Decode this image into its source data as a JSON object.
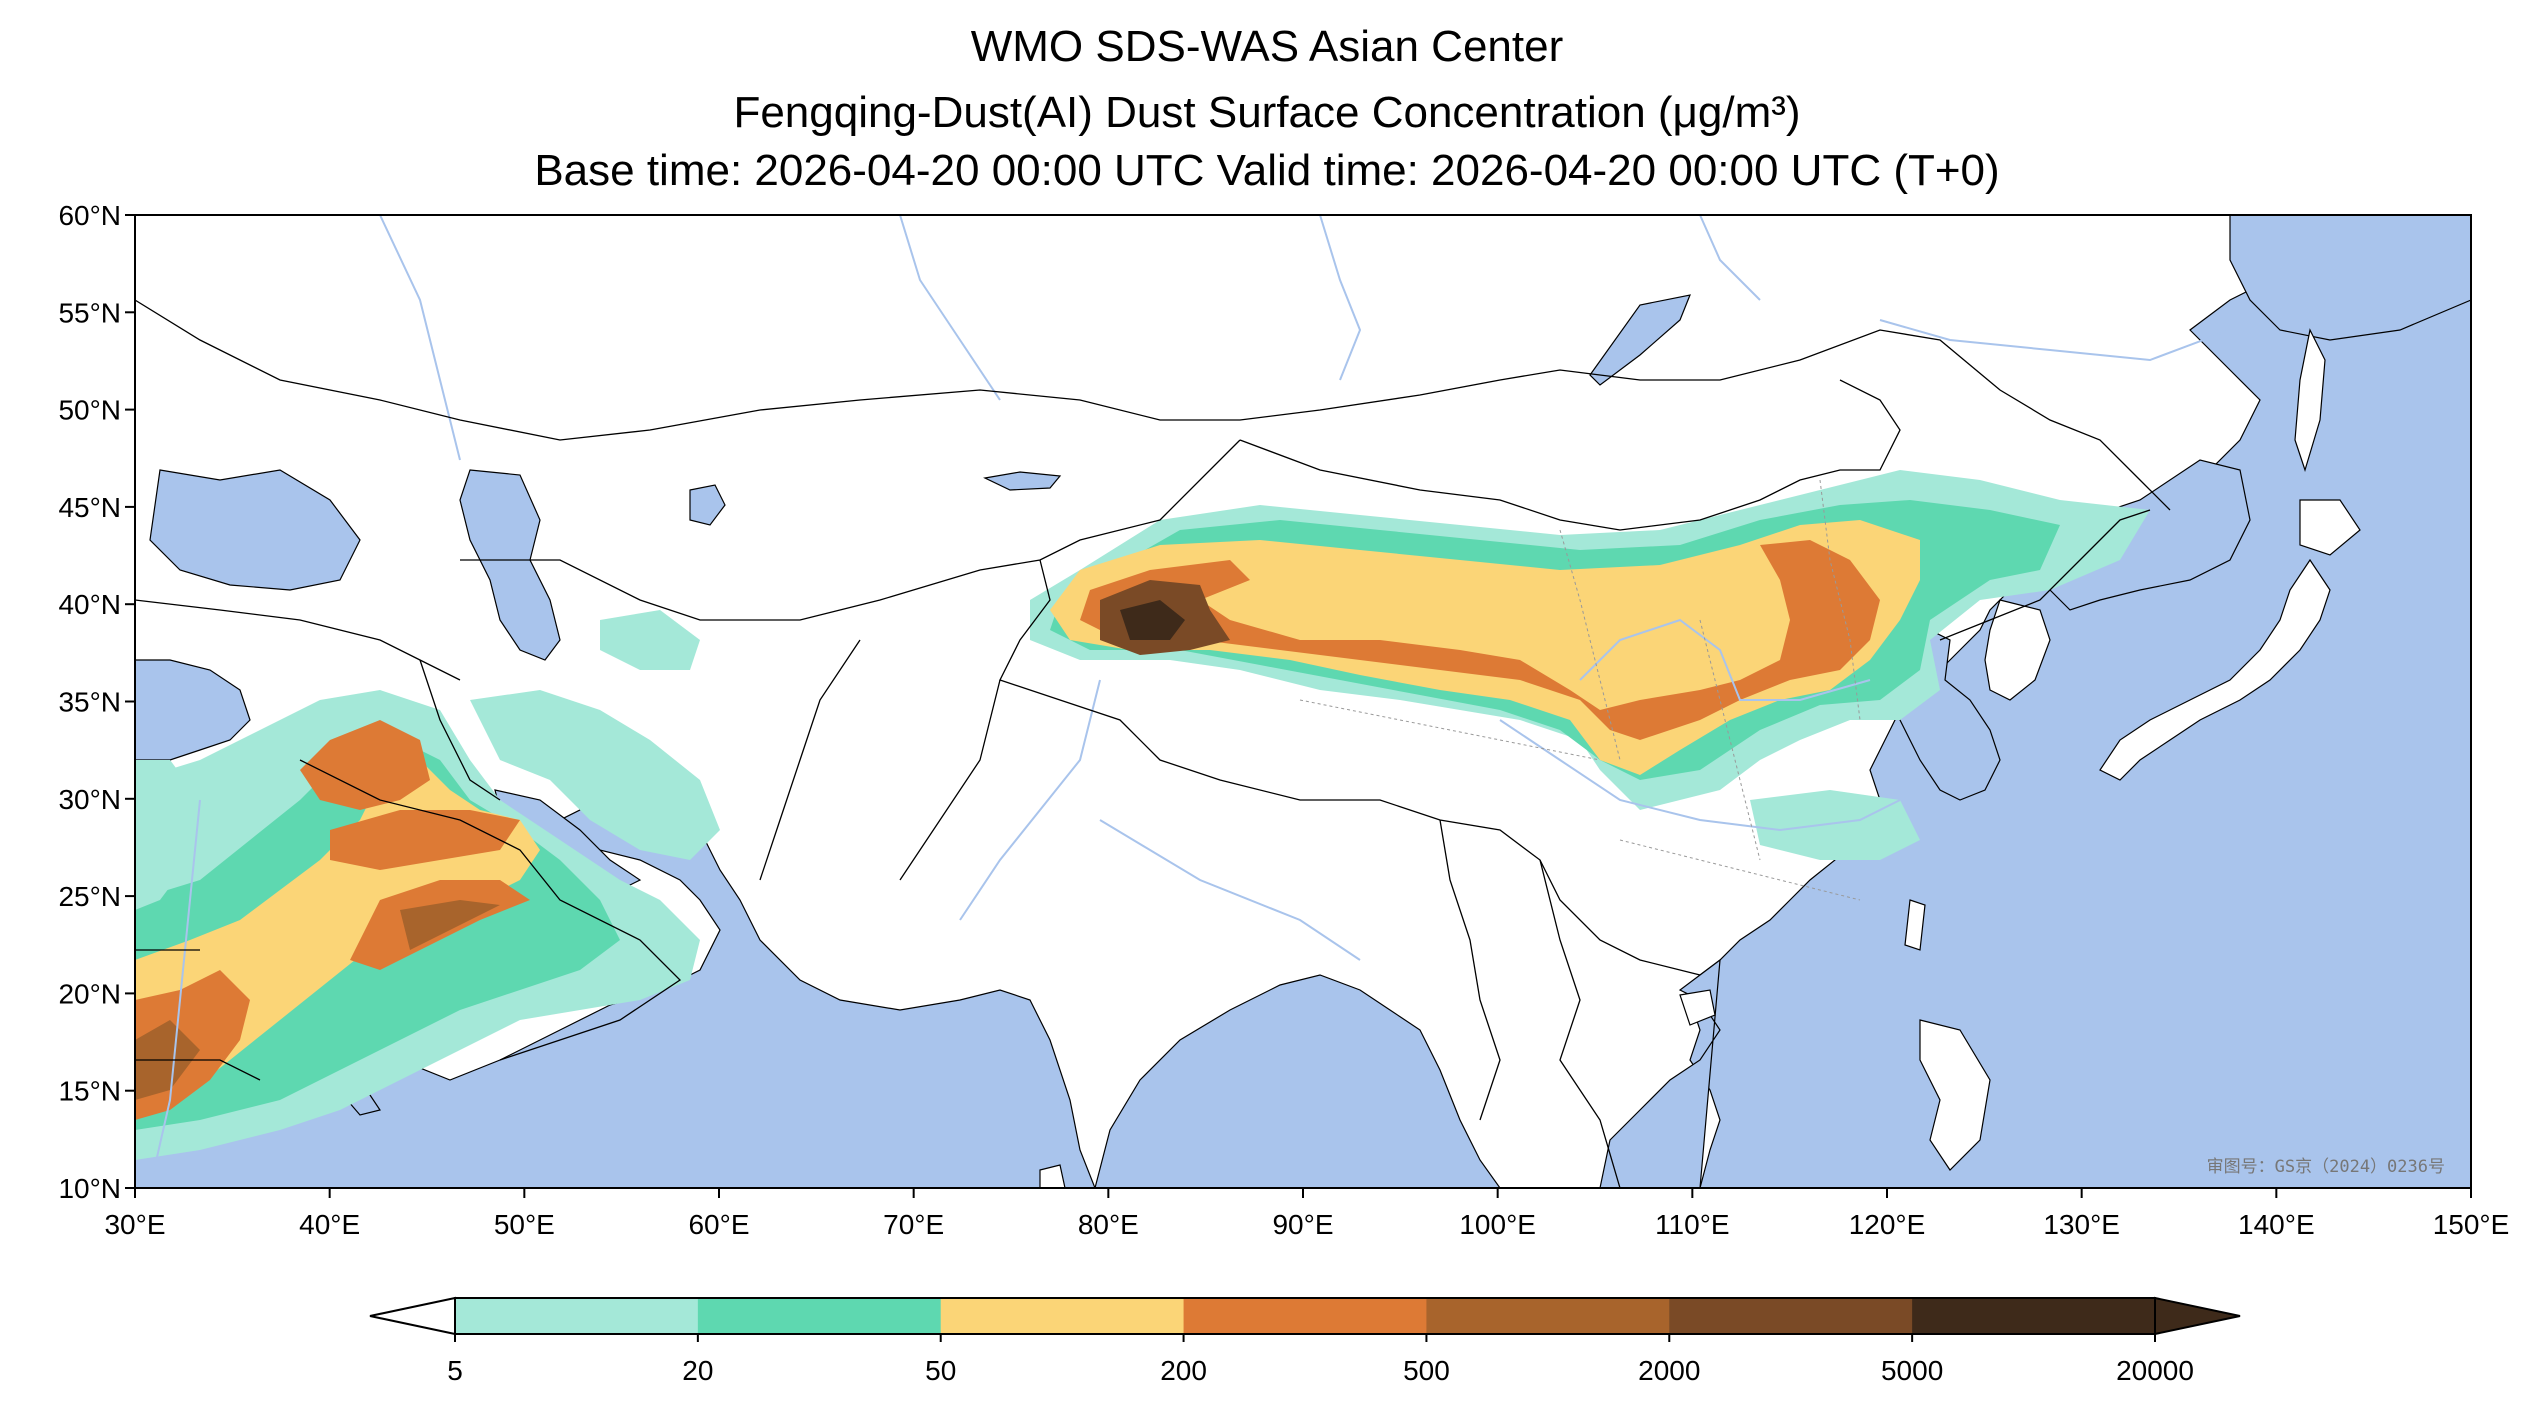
{
  "title": {
    "line1": "WMO SDS-WAS Asian Center",
    "line2": "Fengqing-Dust(AI) Dust Surface Concentration (μg/m³)",
    "line3": "Base time: 2026-04-20 00:00 UTC Valid time: 2026-04-20 00:00 UTC (T+0)"
  },
  "map": {
    "lon_range": [
      30,
      150
    ],
    "lat_range": [
      10,
      60
    ],
    "lon_ticks": [
      "30°E",
      "40°E",
      "50°E",
      "60°E",
      "70°E",
      "80°E",
      "90°E",
      "100°E",
      "110°E",
      "120°E",
      "130°E",
      "140°E",
      "150°E"
    ],
    "lat_ticks": [
      "60°N",
      "55°N",
      "50°N",
      "45°N",
      "40°N",
      "35°N",
      "30°N",
      "25°N",
      "20°N",
      "15°N",
      "10°N"
    ],
    "review_number": "审图号：GS京（2024）0236号",
    "colors": {
      "ocean": "#a9c4ec",
      "land": "#ffffff",
      "borders": "#000000",
      "rivers": "#a9c4ec"
    }
  },
  "colorbar": {
    "labels": [
      "5",
      "20",
      "50",
      "200",
      "500",
      "2000",
      "5000",
      "20000"
    ],
    "colors": [
      "#a4e8d8",
      "#5ed8b0",
      "#fbd577",
      "#dd7a35",
      "#a8642c",
      "#7a4a26",
      "#3e2a1a"
    ],
    "extend": "both"
  }
}
